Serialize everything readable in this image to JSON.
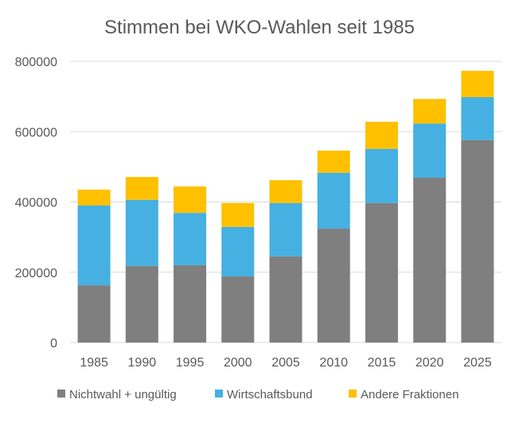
{
  "chart_data": {
    "type": "bar",
    "stacked": true,
    "title": "Stimmen bei WKO-Wahlen seit 1985",
    "xlabel": "",
    "ylabel": "",
    "ylim": [
      0,
      800000
    ],
    "yticks": [
      "0",
      "200000",
      "400000",
      "600000",
      "800000"
    ],
    "ytick_values": [
      0,
      200000,
      400000,
      600000,
      800000
    ],
    "grid": true,
    "legend_position": "bottom",
    "categories": [
      "1985",
      "1990",
      "1995",
      "2000",
      "2005",
      "2010",
      "2015",
      "2020",
      "2025"
    ],
    "series": [
      {
        "name": "Nichtwahl + ungültig",
        "color": "#7f7f7f",
        "values": [
          163000,
          218000,
          220000,
          188000,
          245000,
          324000,
          397000,
          469000,
          576000
        ]
      },
      {
        "name": "Wirtschaftsbund",
        "color": "#45b0e1",
        "values": [
          227000,
          188000,
          149000,
          141000,
          152000,
          159000,
          154000,
          154000,
          122000
        ]
      },
      {
        "name": "Andere Fraktionen",
        "color": "#ffc000",
        "values": [
          45000,
          65000,
          75000,
          68000,
          65000,
          63000,
          77000,
          70000,
          75000
        ]
      }
    ]
  }
}
